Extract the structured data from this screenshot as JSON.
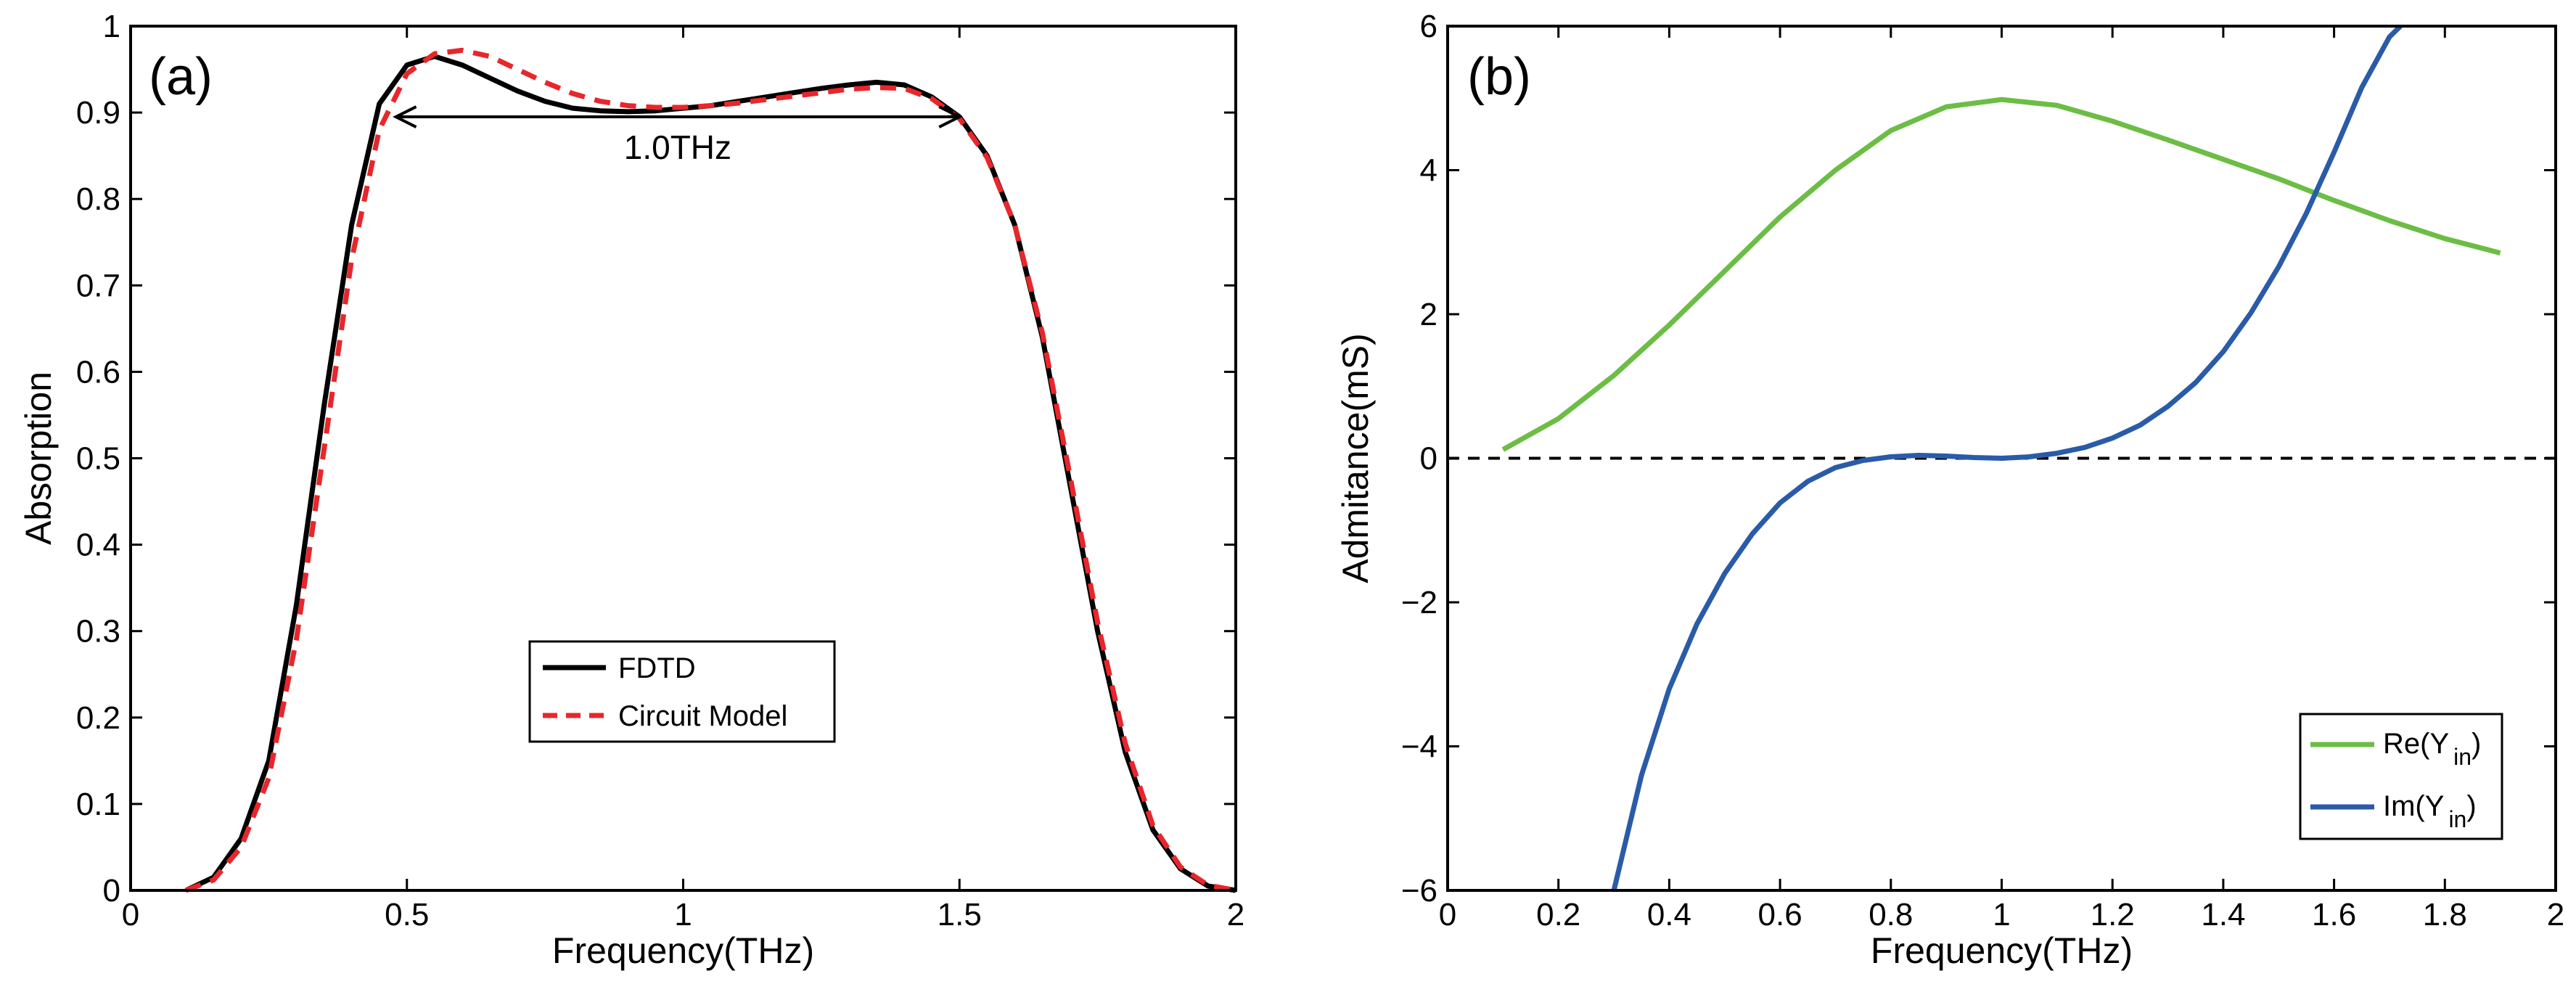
{
  "chart_data": [
    {
      "panel": "(a)",
      "type": "line",
      "xlabel": "Frequency(THz)",
      "ylabel": "Absorption",
      "xlim": [
        0,
        2
      ],
      "ylim": [
        0,
        1
      ],
      "xticks": [
        0,
        0.5,
        1,
        1.5,
        2
      ],
      "xticklabels": [
        "0",
        "0.5",
        "1",
        "1.5",
        "2"
      ],
      "yticks": [
        0,
        0.1,
        0.2,
        0.3,
        0.4,
        0.5,
        0.6,
        0.7,
        0.8,
        0.9,
        1
      ],
      "yticklabels": [
        "0",
        "0.1",
        "0.2",
        "0.3",
        "0.4",
        "0.5",
        "0.6",
        "0.7",
        "0.8",
        "0.9",
        "1"
      ],
      "grid": false,
      "legend_position": "center-bottom",
      "annotation": {
        "text": "1.0THz",
        "x_start": 0.48,
        "x_end": 1.5,
        "y": 0.895
      },
      "series": [
        {
          "name": "FDTD",
          "color": "#000000",
          "style": "solid",
          "x": [
            0.1,
            0.15,
            0.2,
            0.25,
            0.3,
            0.35,
            0.4,
            0.45,
            0.5,
            0.55,
            0.6,
            0.65,
            0.7,
            0.75,
            0.8,
            0.85,
            0.9,
            0.95,
            1.0,
            1.05,
            1.1,
            1.15,
            1.2,
            1.25,
            1.3,
            1.35,
            1.4,
            1.45,
            1.5,
            1.55,
            1.6,
            1.65,
            1.7,
            1.75,
            1.8,
            1.85,
            1.9,
            1.95,
            2.0
          ],
          "y": [
            0.0,
            0.015,
            0.06,
            0.15,
            0.33,
            0.56,
            0.77,
            0.91,
            0.955,
            0.965,
            0.955,
            0.94,
            0.925,
            0.913,
            0.905,
            0.902,
            0.901,
            0.902,
            0.905,
            0.908,
            0.913,
            0.918,
            0.923,
            0.928,
            0.932,
            0.935,
            0.932,
            0.918,
            0.895,
            0.85,
            0.77,
            0.64,
            0.47,
            0.3,
            0.16,
            0.07,
            0.025,
            0.005,
            0.0
          ]
        },
        {
          "name": "Circuit Model",
          "color": "#e8262b",
          "style": "dashed",
          "x": [
            0.1,
            0.15,
            0.2,
            0.25,
            0.3,
            0.35,
            0.4,
            0.45,
            0.5,
            0.55,
            0.6,
            0.65,
            0.7,
            0.75,
            0.8,
            0.85,
            0.9,
            0.95,
            1.0,
            1.05,
            1.1,
            1.15,
            1.2,
            1.25,
            1.3,
            1.35,
            1.4,
            1.45,
            1.5,
            1.55,
            1.6,
            1.65,
            1.7,
            1.75,
            1.8,
            1.85,
            1.9,
            1.95,
            2.0
          ],
          "y": [
            0.0,
            0.012,
            0.05,
            0.13,
            0.29,
            0.51,
            0.73,
            0.88,
            0.945,
            0.968,
            0.972,
            0.965,
            0.95,
            0.935,
            0.922,
            0.913,
            0.908,
            0.906,
            0.906,
            0.908,
            0.911,
            0.915,
            0.919,
            0.923,
            0.927,
            0.929,
            0.928,
            0.916,
            0.893,
            0.848,
            0.77,
            0.645,
            0.48,
            0.31,
            0.17,
            0.075,
            0.027,
            0.006,
            0.0
          ]
        }
      ]
    },
    {
      "panel": "(b)",
      "type": "line",
      "xlabel": "Frequency(THz)",
      "ylabel": "Admitance(mS)",
      "xlim": [
        0,
        2
      ],
      "ylim": [
        -6,
        6
      ],
      "xticks": [
        0,
        0.2,
        0.4,
        0.6,
        0.8,
        1,
        1.2,
        1.4,
        1.6,
        1.8,
        2
      ],
      "xticklabels": [
        "0",
        "0.2",
        "0.4",
        "0.6",
        "0.8",
        "1",
        "1.2",
        "1.4",
        "1.6",
        "1.8",
        "2"
      ],
      "yticks": [
        -6,
        -4,
        -2,
        0,
        2,
        4,
        6
      ],
      "yticklabels": [
        "−6",
        "−4",
        "−2",
        "0",
        "2",
        "4",
        "6"
      ],
      "grid": false,
      "legend_position": "bottom-right",
      "reference_line": {
        "y": 0,
        "style": "dashed",
        "color": "#000000"
      },
      "series": [
        {
          "name": "Re(Y",
          "subscript": "in",
          "suffix": ")",
          "color": "#6cbd45",
          "style": "solid",
          "x": [
            0.1,
            0.2,
            0.3,
            0.4,
            0.5,
            0.6,
            0.7,
            0.8,
            0.9,
            1.0,
            1.1,
            1.2,
            1.3,
            1.4,
            1.5,
            1.6,
            1.7,
            1.8,
            1.9
          ],
          "y": [
            0.12,
            0.55,
            1.15,
            1.85,
            2.6,
            3.35,
            4.0,
            4.55,
            4.88,
            4.98,
            4.9,
            4.68,
            4.42,
            4.15,
            3.88,
            3.58,
            3.3,
            3.05,
            2.85
          ]
        },
        {
          "name": "Im(Y",
          "subscript": "in",
          "suffix": ")",
          "color": "#2a5ba8",
          "style": "solid",
          "x": [
            0.3,
            0.35,
            0.4,
            0.45,
            0.5,
            0.55,
            0.6,
            0.65,
            0.7,
            0.75,
            0.8,
            0.85,
            0.9,
            0.95,
            1.0,
            1.05,
            1.1,
            1.15,
            1.2,
            1.25,
            1.3,
            1.35,
            1.4,
            1.45,
            1.5,
            1.55,
            1.6,
            1.65,
            1.7,
            1.72
          ],
          "y": [
            -6.0,
            -4.4,
            -3.2,
            -2.3,
            -1.6,
            -1.05,
            -0.62,
            -0.32,
            -0.13,
            -0.03,
            0.02,
            0.04,
            0.03,
            0.01,
            0.0,
            0.02,
            0.07,
            0.15,
            0.28,
            0.46,
            0.72,
            1.05,
            1.48,
            2.02,
            2.66,
            3.4,
            4.25,
            5.15,
            5.85,
            6.0
          ]
        }
      ]
    }
  ]
}
